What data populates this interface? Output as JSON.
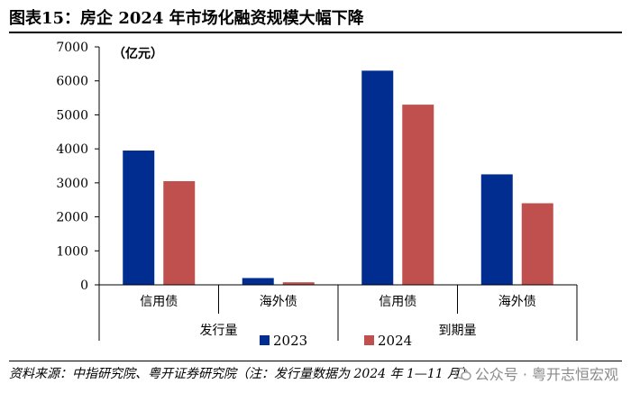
{
  "figure": {
    "title": "图表15：房企 2024 年市场化融资规模大幅下降",
    "source": "资料来源：中指研究院、粤开证券研究院（注：发行量数据为 2024 年 1—11 月）",
    "watermark": "公众号 · 粤开志恒宏观"
  },
  "chart_data": {
    "type": "bar",
    "unit_label": "（亿元）",
    "groups": [
      "发行量",
      "到期量"
    ],
    "categories": [
      "信用债",
      "海外债",
      "信用债",
      "海外债"
    ],
    "category_group": [
      0,
      0,
      1,
      1
    ],
    "series": [
      {
        "name": "2023",
        "color": "#002d8f",
        "values": [
          3950,
          200,
          6300,
          3250
        ]
      },
      {
        "name": "2024",
        "color": "#c0504d",
        "values": [
          3050,
          75,
          5300,
          2400
        ]
      }
    ],
    "ylim": [
      0,
      7000
    ],
    "yticks": [
      "0",
      "1000",
      "2000",
      "3000",
      "4000",
      "5000",
      "6000",
      "7000"
    ],
    "grid": false,
    "legend_position": "bottom"
  }
}
